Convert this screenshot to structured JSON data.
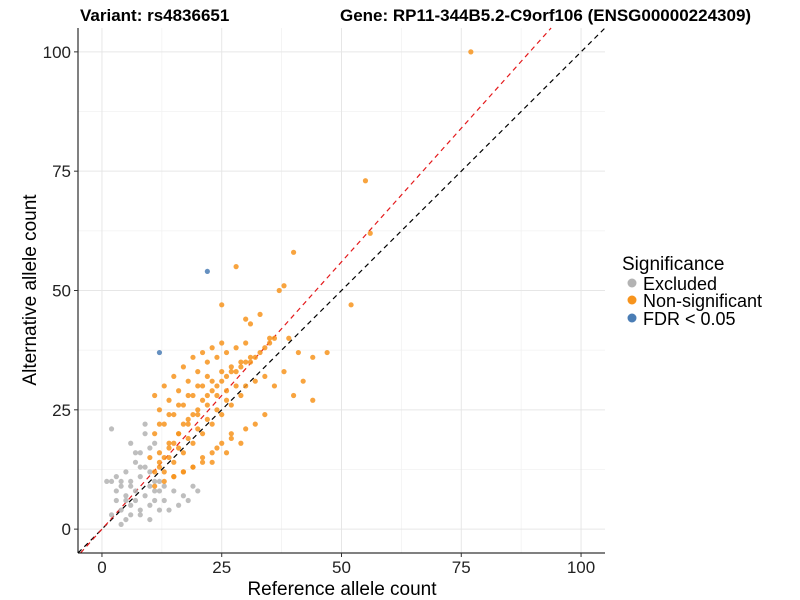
{
  "chart_data": {
    "type": "scatter",
    "title_left": "Variant: rs4836651",
    "title_right": "Gene: RP11-344B5.2-C9orf106 (ENSG00000224309)",
    "xlabel": "Reference allele count",
    "ylabel": "Alternative allele count",
    "xlim": [
      -5,
      105
    ],
    "ylim": [
      -5,
      105
    ],
    "x_ticks": [
      0,
      25,
      50,
      75,
      100
    ],
    "y_ticks": [
      0,
      25,
      50,
      75,
      100
    ],
    "grid": true,
    "legend": {
      "title": "Significance",
      "position": "right",
      "entries": [
        {
          "label": "Excluded",
          "color": "#b3b3b3"
        },
        {
          "label": "Non-significant",
          "color": "#f7941d"
        },
        {
          "label": "FDR < 0.05",
          "color": "#4a7db5"
        }
      ]
    },
    "reference_lines": [
      {
        "name": "identity",
        "slope": 1.0,
        "intercept": 0,
        "color": "#000000",
        "style": "dashed"
      },
      {
        "name": "fitted",
        "slope": 1.12,
        "intercept": 0,
        "color": "#e41a1c",
        "style": "dashed"
      }
    ],
    "series": [
      {
        "name": "Excluded",
        "color": "#b3b3b3",
        "x": [
          1,
          2,
          2,
          3,
          3,
          4,
          4,
          5,
          5,
          5,
          6,
          6,
          6,
          7,
          7,
          7,
          8,
          8,
          8,
          9,
          9,
          9,
          10,
          10,
          10,
          11,
          11,
          11,
          12,
          12,
          13,
          13,
          14,
          15,
          16,
          17,
          18,
          19,
          20,
          2,
          4,
          6,
          8,
          9,
          10,
          11,
          4,
          5,
          7,
          3,
          6,
          8,
          10,
          12
        ],
        "y": [
          10,
          3,
          10,
          8,
          6,
          4,
          9,
          12,
          2,
          7,
          5,
          10,
          3,
          8,
          14,
          6,
          11,
          4,
          16,
          7,
          20,
          13,
          9,
          5,
          17,
          6,
          18,
          10,
          8,
          4,
          6,
          9,
          4,
          8,
          5,
          7,
          6,
          9,
          8,
          21,
          10,
          18,
          13,
          22,
          12,
          8,
          1,
          6,
          16,
          11,
          9,
          3,
          2,
          10
        ]
      },
      {
        "name": "Non-significant",
        "color": "#f7941d",
        "x": [
          77,
          55,
          56,
          40,
          28,
          38,
          37,
          25,
          52,
          33,
          30,
          31,
          39,
          35,
          41,
          44,
          47,
          11,
          12,
          13,
          14,
          15,
          16,
          17,
          18,
          19,
          20,
          21,
          22,
          23,
          24,
          25,
          26,
          27,
          28,
          29,
          30,
          31,
          32,
          33,
          34,
          35,
          36,
          12,
          14,
          16,
          18,
          20,
          22,
          24,
          26,
          28,
          30,
          32,
          34,
          11,
          13,
          15,
          17,
          19,
          21,
          23,
          25,
          27,
          29,
          31,
          12,
          14,
          16,
          18,
          20,
          22,
          24,
          26,
          28,
          30,
          13,
          15,
          17,
          19,
          21,
          23,
          25,
          27,
          29,
          11,
          13,
          15,
          17,
          19,
          21,
          23,
          25,
          12,
          14,
          16,
          18,
          20,
          22,
          24,
          26,
          15,
          17,
          19,
          21,
          23,
          25,
          27,
          10,
          12,
          14,
          16,
          18,
          20,
          22,
          36,
          40,
          42,
          44,
          38,
          34,
          32,
          30,
          29,
          27,
          26,
          24,
          23,
          21,
          19,
          17,
          15,
          13,
          11
        ],
        "y": [
          100,
          73,
          62,
          58,
          55,
          51,
          50,
          47,
          47,
          45,
          44,
          43,
          40,
          40,
          37,
          36,
          37,
          12,
          14,
          15,
          17,
          18,
          20,
          22,
          23,
          24,
          25,
          27,
          28,
          29,
          30,
          31,
          32,
          33,
          33,
          34,
          35,
          35,
          36,
          37,
          38,
          39,
          40,
          16,
          18,
          20,
          22,
          24,
          26,
          28,
          29,
          30,
          30,
          31,
          32,
          20,
          22,
          24,
          26,
          28,
          30,
          31,
          33,
          34,
          35,
          36,
          25,
          27,
          29,
          31,
          33,
          35,
          36,
          37,
          38,
          39,
          12,
          14,
          16,
          18,
          20,
          22,
          24,
          26,
          28,
          28,
          30,
          32,
          34,
          36,
          37,
          38,
          39,
          13,
          15,
          17,
          19,
          21,
          23,
          25,
          27,
          11,
          12,
          13,
          14,
          16,
          18,
          20,
          15,
          22,
          24,
          26,
          28,
          30,
          32,
          30,
          28,
          31,
          27,
          33,
          24,
          22,
          21,
          18,
          19,
          16,
          17,
          14,
          15,
          13,
          12,
          11,
          10,
          9
        ]
      },
      {
        "name": "FDR < 0.05",
        "color": "#4a7db5",
        "x": [
          22,
          12
        ],
        "y": [
          54,
          37
        ]
      }
    ]
  }
}
